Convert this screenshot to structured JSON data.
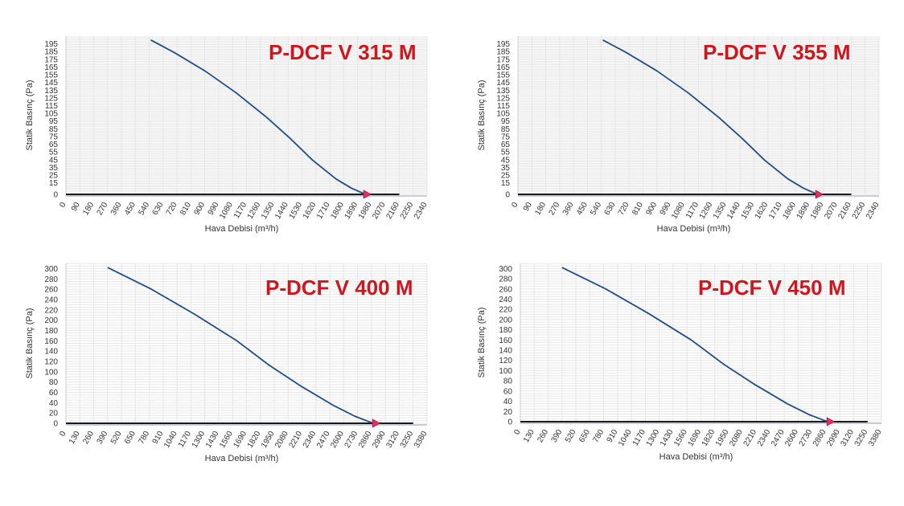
{
  "colors": {
    "curve": "#1f4e86",
    "marker": "#e8315a",
    "baseline": "#1a1a1a",
    "grid": "#e6e6e6",
    "axis": "#c8ccd6",
    "title": "#d0151d"
  },
  "chart_data": [
    {
      "type": "line",
      "title": "P-DCF V 315 M",
      "xlabel": "Hava Debisi (m³/h)",
      "ylabel": "Statik Basınç (Pa)",
      "xlim": [
        0,
        2340
      ],
      "ylim": [
        0,
        205
      ],
      "x_ticks": [
        0,
        90,
        180,
        270,
        360,
        450,
        540,
        630,
        720,
        810,
        900,
        990,
        1080,
        1170,
        1260,
        1350,
        1440,
        1530,
        1620,
        1710,
        1800,
        1890,
        1980,
        2070,
        2160,
        2250,
        2340
      ],
      "y_ticks": [
        0,
        15,
        25,
        35,
        45,
        55,
        65,
        75,
        85,
        95,
        105,
        115,
        125,
        135,
        145,
        155,
        165,
        175,
        185,
        195
      ],
      "grid": true,
      "series": [
        {
          "x": [
            550,
            700,
            900,
            1100,
            1300,
            1450,
            1600,
            1750,
            1850,
            1930,
            1950
          ],
          "y": [
            200,
            184,
            160,
            132,
            100,
            73,
            44,
            20,
            8,
            1,
            0
          ]
        }
      ],
      "baseline": {
        "x": [
          0,
          2160
        ],
        "y": [
          0,
          0
        ]
      },
      "marker": {
        "x": 1950,
        "y": 0
      }
    },
    {
      "type": "line",
      "title": "P-DCF V 355 M",
      "xlabel": "Hava Debisi (m³/h)",
      "ylabel": "Statik Basınç (Pa)",
      "xlim": [
        0,
        2340
      ],
      "ylim": [
        0,
        205
      ],
      "x_ticks": [
        0,
        90,
        180,
        270,
        360,
        450,
        540,
        630,
        720,
        810,
        900,
        990,
        1080,
        1170,
        1260,
        1350,
        1440,
        1530,
        1620,
        1710,
        1800,
        1890,
        1980,
        2070,
        2160,
        2250,
        2340
      ],
      "y_ticks": [
        0,
        15,
        25,
        35,
        45,
        55,
        65,
        75,
        85,
        95,
        105,
        115,
        125,
        135,
        145,
        155,
        165,
        175,
        185,
        195
      ],
      "grid": true,
      "series": [
        {
          "x": [
            550,
            700,
            900,
            1100,
            1300,
            1450,
            1600,
            1750,
            1850,
            1930,
            1950
          ],
          "y": [
            200,
            184,
            160,
            132,
            100,
            73,
            44,
            20,
            8,
            1,
            0
          ]
        }
      ],
      "baseline": {
        "x": [
          0,
          2160
        ],
        "y": [
          0,
          0
        ]
      },
      "marker": {
        "x": 1950,
        "y": 0
      }
    },
    {
      "type": "line",
      "title": "P-DCF V 400 M",
      "xlabel": "Hava Debisi (m³/h)",
      "ylabel": "Statik Basınç (Pa)",
      "xlim": [
        0,
        3380
      ],
      "ylim": [
        0,
        310
      ],
      "x_ticks": [
        0,
        130,
        260,
        390,
        520,
        650,
        780,
        910,
        1040,
        1170,
        1300,
        1430,
        1560,
        1690,
        1820,
        1950,
        2080,
        2210,
        2340,
        2470,
        2600,
        2730,
        2860,
        2990,
        3120,
        3250,
        3380
      ],
      "y_ticks": [
        0,
        20,
        40,
        60,
        80,
        100,
        120,
        140,
        160,
        180,
        200,
        220,
        240,
        260,
        280,
        300
      ],
      "grid": true,
      "series": [
        {
          "x": [
            390,
            800,
            1200,
            1600,
            1900,
            2200,
            2500,
            2700,
            2850,
            2900
          ],
          "y": [
            302,
            260,
            212,
            160,
            113,
            72,
            35,
            14,
            2,
            0
          ]
        }
      ],
      "baseline": {
        "x": [
          0,
          3250
        ],
        "y": [
          0,
          0
        ]
      },
      "marker": {
        "x": 2900,
        "y": 0
      }
    },
    {
      "type": "line",
      "title": "P-DCF V 450 M",
      "xlabel": "Hava Debisi (m³/h)",
      "ylabel": "Statik Basınç (Pa)",
      "xlim": [
        0,
        3380
      ],
      "ylim": [
        0,
        310
      ],
      "x_ticks": [
        0,
        130,
        260,
        390,
        520,
        650,
        780,
        910,
        1040,
        1170,
        1300,
        1430,
        1560,
        1690,
        1820,
        1950,
        2080,
        2210,
        2340,
        2470,
        2600,
        2730,
        2860,
        2990,
        3120,
        3250,
        3380
      ],
      "y_ticks": [
        0,
        20,
        40,
        60,
        80,
        100,
        120,
        140,
        160,
        180,
        200,
        220,
        240,
        260,
        280,
        300
      ],
      "grid": true,
      "series": [
        {
          "x": [
            390,
            800,
            1200,
            1600,
            1900,
            2200,
            2500,
            2700,
            2850,
            2900
          ],
          "y": [
            302,
            260,
            212,
            160,
            113,
            72,
            35,
            14,
            2,
            0
          ]
        }
      ],
      "baseline": {
        "x": [
          0,
          3250
        ],
        "y": [
          0,
          0
        ]
      },
      "marker": {
        "x": 2900,
        "y": 0
      }
    }
  ]
}
